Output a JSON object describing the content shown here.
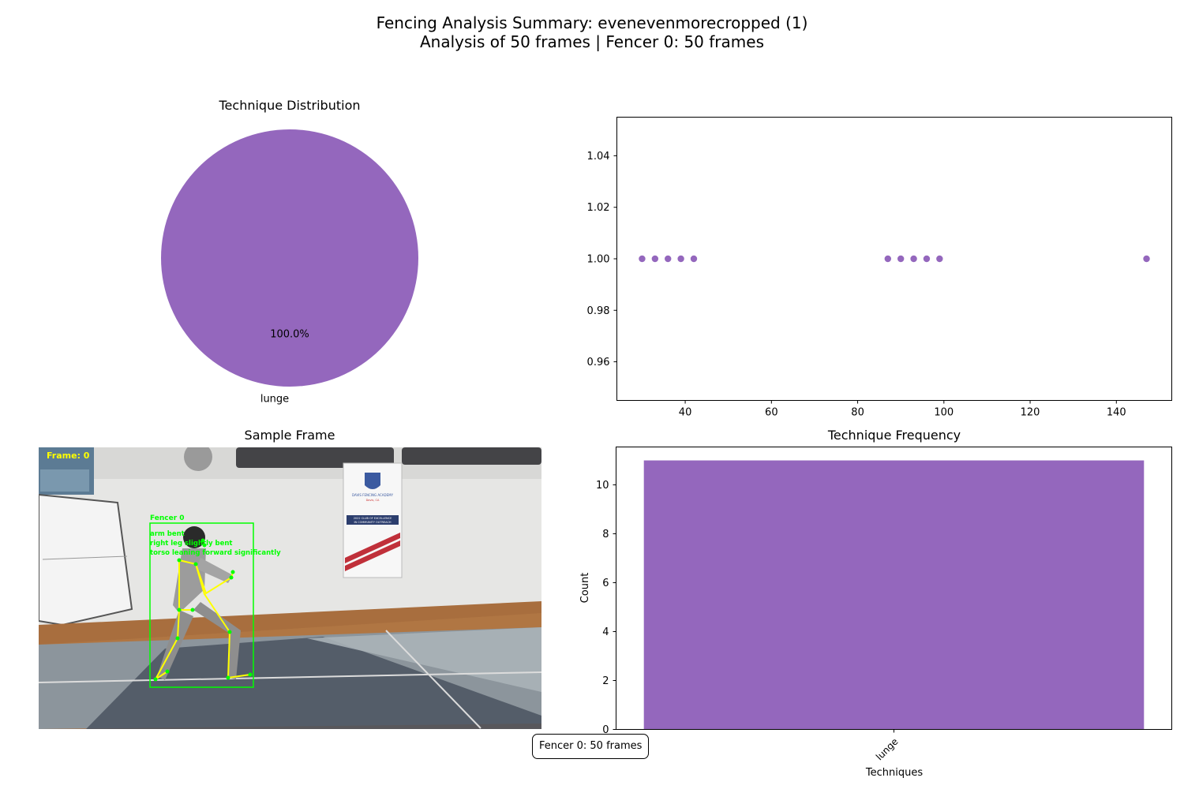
{
  "suptitle": {
    "line1": "Fencing Analysis Summary: evenevenmorecropped (1)",
    "line2": "Analysis of 50 frames | Fencer 0: 50 frames"
  },
  "footer_box": "Fencer 0: 50 frames",
  "sample_frame": {
    "title": "Sample Frame",
    "overlay": {
      "frame_label": "Frame: 0",
      "fencer_label": "Fencer 0",
      "notes": [
        "arm bent",
        "right leg slightly bent",
        "torso leaning forward significantly"
      ]
    },
    "banner": {
      "line1": "DAVIS FENCING ACADEMY",
      "line2": "Davis, CA",
      "line3": "2022 CLUB OF EXCELLENCE",
      "line4": "IN COMMUNITY OUTREACH"
    }
  },
  "colors": {
    "accent": "#9467bd",
    "overlay_green": "#00ff00",
    "overlay_yellow": "#ffff00"
  },
  "chart_data": [
    {
      "type": "pie",
      "title": "Technique Distribution",
      "labels": [
        "lunge"
      ],
      "values": [
        100
      ],
      "pct_labels": [
        "100.0%"
      ]
    },
    {
      "type": "scatter",
      "title": "",
      "x": [
        30,
        33,
        36,
        39,
        42,
        87,
        90,
        93,
        96,
        99,
        147
      ],
      "y": [
        1,
        1,
        1,
        1,
        1,
        1,
        1,
        1,
        1,
        1,
        1
      ],
      "xlim": [
        24.15,
        152.85
      ],
      "ylim": [
        0.945,
        1.055
      ],
      "xticks": [
        40,
        60,
        80,
        100,
        120,
        140
      ],
      "yticks": [
        0.96,
        0.98,
        1.0,
        1.02,
        1.04
      ],
      "ytick_labels": [
        "0.96",
        "0.98",
        "1.00",
        "1.02",
        "1.04"
      ]
    },
    {
      "type": "bar",
      "title": "Technique Frequency",
      "categories": [
        "lunge"
      ],
      "values": [
        11
      ],
      "xlabel": "Techniques",
      "ylabel": "Count",
      "ylim": [
        0,
        11.55
      ],
      "yticks": [
        0,
        2,
        4,
        6,
        8,
        10
      ]
    }
  ]
}
